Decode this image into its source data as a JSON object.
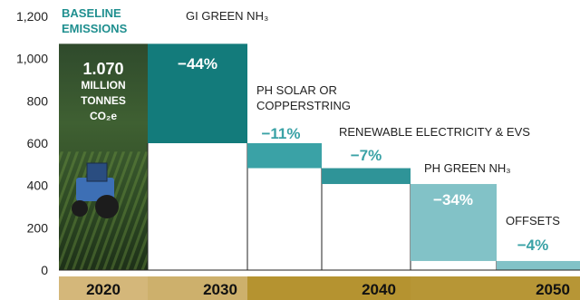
{
  "chart_data": {
    "type": "waterfall",
    "ylim": [
      0,
      1200
    ],
    "yticks": [
      "0",
      "200",
      "400",
      "600",
      "800",
      "1,000",
      "1,200"
    ],
    "baseline": {
      "heading_line1": "BASELINE",
      "heading_line2": "EMISSIONS",
      "value_line1": "1.070",
      "value_line2": "MILLION",
      "value_line3": "TONNES",
      "value_line4": "CO₂e",
      "value": 1070
    },
    "steps": [
      {
        "label_line1": "GI GREEN NH₃",
        "label_line2": "",
        "pct": "−44%",
        "start": 1070,
        "end": 600
      },
      {
        "label_line1": "PH SOLAR OR",
        "label_line2": "COPPERSTRING",
        "pct": "−11%",
        "start": 600,
        "end": 482
      },
      {
        "label_line1": "RENEWABLE ELECTRICITY & EVS",
        "label_line2": "",
        "pct": "−7%",
        "start": 482,
        "end": 407
      },
      {
        "label_line1": "PH GREEN NH₃",
        "label_line2": "",
        "pct": "−34%",
        "start": 407,
        "end": 43
      },
      {
        "label_line1": "OFFSETS",
        "label_line2": "",
        "pct": "−4%",
        "start": 43,
        "end": 0
      }
    ],
    "x_periods": [
      {
        "label": "2020"
      },
      {
        "label": "2030"
      },
      {
        "label": "2040"
      },
      {
        "label": "2050"
      }
    ],
    "colors": {
      "baseline_head": "#1f8f8f",
      "step1": "#137b7b",
      "step2": "#3aa2a6",
      "step3": "#2f9498",
      "step4": "#82c2c7",
      "step5": "#82c2c7",
      "pct_dark": "#ffffff",
      "pct_light": "#3aa2a6",
      "axis_band_2020": "#d4b77a",
      "axis_band_2030": "#cdb06c",
      "axis_band_2040": "#b59330",
      "axis_band_2050": "#b79636"
    }
  }
}
